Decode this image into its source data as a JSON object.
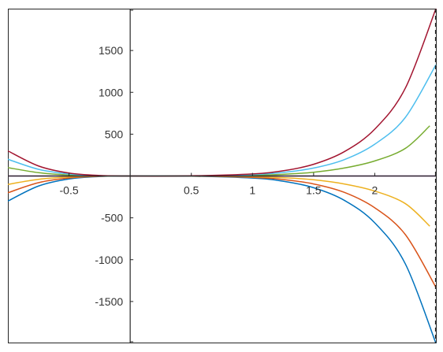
{
  "chart_data": {
    "type": "line",
    "title": "",
    "xlabel": "",
    "ylabel": "",
    "xlim": [
      -1.0,
      2.5
    ],
    "ylim": [
      -2000,
      2000
    ],
    "grid": false,
    "legend": "none",
    "axes_location": "origin",
    "x_ticks": [
      -0.5,
      0.5,
      1,
      1.5,
      2
    ],
    "x_tick_labels": [
      "-0.5",
      "0.5",
      "1",
      "1.5",
      "2"
    ],
    "y_ticks": [
      1500,
      1000,
      500,
      -500,
      -1000,
      -1500
    ],
    "y_tick_labels": [
      "1500",
      "1000",
      "500",
      "-500",
      "-1000",
      "-1500"
    ],
    "vertical_dashed_line_x": 2.5,
    "series": [
      {
        "color": "#0072BD",
        "x": [
          -1,
          -0.75,
          -0.5,
          -0.25,
          0,
          0.5,
          1,
          1.25,
          1.5,
          1.75,
          2,
          2.25,
          2.5
        ],
        "y": [
          -300,
          -120,
          -35,
          -6,
          0,
          -2,
          -25,
          -62,
          -140,
          -290,
          -560,
          -1050,
          -2000
        ]
      },
      {
        "color": "#D95319",
        "x": [
          -1,
          -0.75,
          -0.5,
          -0.25,
          0,
          0.5,
          1,
          1.25,
          1.5,
          1.75,
          2,
          2.25,
          2.5
        ],
        "y": [
          -200,
          -80,
          -24,
          -4,
          0,
          -1.5,
          -17,
          -42,
          -95,
          -195,
          -380,
          -700,
          -1330
        ]
      },
      {
        "color": "#EDB120",
        "x": [
          -1,
          -0.75,
          -0.5,
          -0.25,
          0,
          0.5,
          1,
          1.25,
          1.5,
          1.75,
          2,
          2.25,
          2.45
        ],
        "y": [
          -100,
          -40,
          -12,
          -2,
          0,
          -0.8,
          -8,
          -20,
          -45,
          -95,
          -180,
          -330,
          -600
        ]
      },
      {
        "color": "#7E2F8E",
        "x": [
          -1,
          0,
          1,
          2,
          2.5
        ],
        "y": [
          0,
          0,
          0,
          0,
          0
        ]
      },
      {
        "color": "#77AC30",
        "x": [
          -1,
          -0.75,
          -0.5,
          -0.25,
          0,
          0.5,
          1,
          1.25,
          1.5,
          1.75,
          2,
          2.25,
          2.45
        ],
        "y": [
          100,
          40,
          12,
          2,
          0,
          0.8,
          8,
          20,
          45,
          95,
          180,
          330,
          600
        ]
      },
      {
        "color": "#4DBEEE",
        "x": [
          -1,
          -0.75,
          -0.5,
          -0.25,
          0,
          0.5,
          1,
          1.25,
          1.5,
          1.75,
          2,
          2.25,
          2.5
        ],
        "y": [
          200,
          80,
          24,
          4,
          0,
          1.5,
          17,
          42,
          95,
          195,
          380,
          700,
          1330
        ]
      },
      {
        "color": "#A2142F",
        "x": [
          -1,
          -0.75,
          -0.5,
          -0.25,
          0,
          0.5,
          1,
          1.25,
          1.5,
          1.75,
          2,
          2.25,
          2.5
        ],
        "y": [
          300,
          120,
          35,
          6,
          0,
          2,
          25,
          62,
          140,
          290,
          560,
          1050,
          2000
        ]
      }
    ]
  }
}
